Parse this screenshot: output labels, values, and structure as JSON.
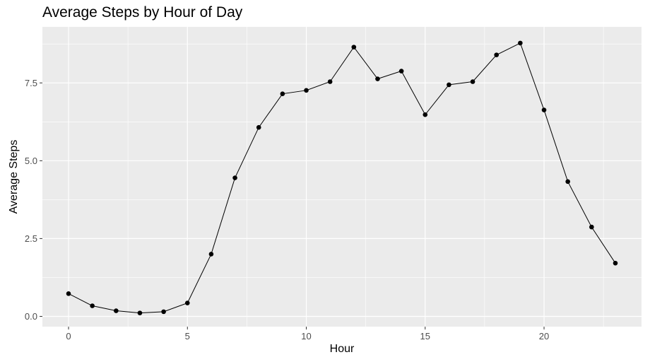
{
  "chart_data": {
    "type": "line",
    "title": "Average Steps by Hour of Day",
    "xlabel": "Hour",
    "ylabel": "Average Steps",
    "x": [
      0,
      1,
      2,
      3,
      4,
      5,
      6,
      7,
      8,
      9,
      10,
      11,
      12,
      13,
      14,
      15,
      16,
      17,
      18,
      19,
      20,
      21,
      22,
      23
    ],
    "series": [
      {
        "values": [
          0.73,
          0.34,
          0.18,
          0.11,
          0.15,
          0.43,
          2.0,
          4.45,
          6.07,
          7.15,
          7.26,
          7.54,
          8.65,
          7.63,
          7.88,
          6.48,
          7.44,
          7.54,
          8.4,
          8.78,
          6.63,
          4.33,
          2.87,
          1.71
        ]
      }
    ],
    "xlim": [
      -1.1,
      24.1
    ],
    "ylim": [
      -0.33,
      9.3
    ],
    "x_ticks": [
      0,
      5,
      10,
      15,
      20
    ],
    "x_tick_labels": [
      "0",
      "5",
      "10",
      "15",
      "20"
    ],
    "y_ticks": [
      0,
      2.5,
      5,
      7.5
    ],
    "y_tick_labels": [
      "0.0",
      "2.5",
      "5.0",
      "7.5"
    ],
    "grid": true,
    "panel_background": "#ebebeb",
    "grid_color": "#ffffff",
    "line_color": "#000000",
    "point_color": "#000000"
  }
}
